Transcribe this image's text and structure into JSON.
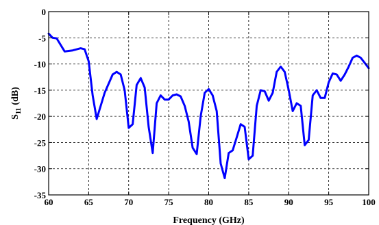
{
  "chart_data": {
    "type": "line",
    "title": "",
    "xlabel": "Frequency (GHz)",
    "ylabel": {
      "main": "S",
      "sub": "11",
      "unit": "(dB)"
    },
    "xlim": [
      60,
      100
    ],
    "ylim": [
      -35,
      0
    ],
    "xticks": [
      60,
      65,
      70,
      75,
      80,
      85,
      90,
      95,
      100
    ],
    "yticks": [
      0,
      -5,
      -10,
      -15,
      -20,
      -25,
      -30,
      -35
    ],
    "grid": true,
    "grid_style": "dashed",
    "legend": "none",
    "series": [
      {
        "color": "#0000ff",
        "x": [
          60,
          60.5,
          61,
          62,
          63,
          64,
          64.5,
          65,
          65.5,
          66,
          67,
          68,
          68.5,
          69,
          69.5,
          70,
          70.5,
          71,
          71.5,
          72,
          72.5,
          73,
          73.5,
          74,
          74.5,
          75,
          75.5,
          76,
          76.5,
          77,
          77.5,
          78,
          78.5,
          79,
          79.5,
          80,
          80.5,
          81,
          81.5,
          82,
          82.5,
          83,
          83.5,
          84,
          84.5,
          85,
          85.5,
          86,
          86.5,
          87,
          87.5,
          88,
          88.5,
          89,
          89.5,
          90,
          90.5,
          91,
          91.5,
          92,
          92.5,
          93,
          93.5,
          94,
          94.5,
          95,
          95.5,
          96,
          96.5,
          97,
          97.5,
          98,
          98.5,
          99,
          99.5,
          100
        ],
        "y": [
          -4.2,
          -5.0,
          -5.1,
          -7.6,
          -7.4,
          -7.0,
          -7.2,
          -9.5,
          -16.0,
          -20.5,
          -15.5,
          -12.0,
          -11.5,
          -12.0,
          -15.0,
          -22.2,
          -21.5,
          -14.0,
          -12.7,
          -14.5,
          -22.0,
          -27.0,
          -17.5,
          -16.0,
          -16.8,
          -16.8,
          -16.0,
          -15.8,
          -16.2,
          -18.0,
          -21.0,
          -26.0,
          -27.2,
          -20.0,
          -15.5,
          -14.8,
          -16.0,
          -19.0,
          -29.0,
          -31.8,
          -27.0,
          -26.5,
          -24.0,
          -21.5,
          -22.0,
          -28.2,
          -27.5,
          -18.0,
          -15.0,
          -15.2,
          -17.0,
          -15.5,
          -11.5,
          -10.5,
          -11.5,
          -15.0,
          -19.0,
          -17.5,
          -18.0,
          -25.5,
          -24.5,
          -16.0,
          -15.0,
          -16.5,
          -16.5,
          -13.5,
          -11.8,
          -12.0,
          -13.2,
          -12.0,
          -10.5,
          -8.8,
          -8.4,
          -8.8,
          -9.8,
          -10.8
        ]
      }
    ]
  }
}
